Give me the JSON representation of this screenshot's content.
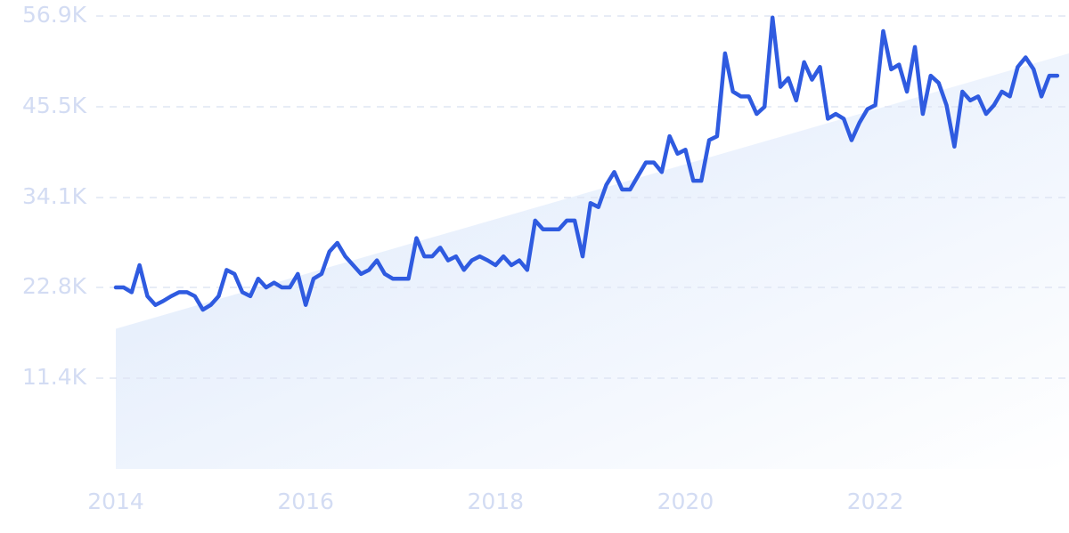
{
  "chart_data": {
    "type": "line",
    "x": [
      2014,
      2014.083,
      2014.167,
      2014.25,
      2014.333,
      2014.417,
      2014.5,
      2014.583,
      2014.667,
      2014.75,
      2014.833,
      2014.917,
      2015,
      2015.083,
      2015.167,
      2015.25,
      2015.333,
      2015.417,
      2015.5,
      2015.583,
      2015.667,
      2015.75,
      2015.833,
      2015.917,
      2016,
      2016.083,
      2016.167,
      2016.25,
      2016.333,
      2016.417,
      2016.5,
      2016.583,
      2016.667,
      2016.75,
      2016.833,
      2016.917,
      2017,
      2017.083,
      2017.167,
      2017.25,
      2017.333,
      2017.417,
      2017.5,
      2017.583,
      2017.667,
      2017.75,
      2017.833,
      2017.917,
      2018,
      2018.083,
      2018.167,
      2018.25,
      2018.333,
      2018.417,
      2018.5,
      2018.583,
      2018.667,
      2018.75,
      2018.833,
      2018.917,
      2019,
      2019.083,
      2019.167,
      2019.25,
      2019.333,
      2019.417,
      2019.5,
      2019.583,
      2019.667,
      2019.75,
      2019.833,
      2019.917,
      2020,
      2020.083,
      2020.167,
      2020.25,
      2020.333,
      2020.417,
      2020.5,
      2020.583,
      2020.667,
      2020.75,
      2020.833,
      2020.917,
      2021,
      2021.083,
      2021.167,
      2021.25,
      2021.333,
      2021.417,
      2021.5,
      2021.583,
      2021.667,
      2021.75,
      2021.833,
      2021.917,
      2022,
      2022.083,
      2022.167,
      2022.25,
      2022.333,
      2022.417,
      2022.5,
      2022.583,
      2022.667,
      2022.75,
      2022.833,
      2022.917,
      2023,
      2023.083,
      2023.167,
      2023.25,
      2023.333,
      2023.417,
      2023.5,
      2023.583,
      2023.667,
      2023.75,
      2023.833,
      2023.917
    ],
    "series": [
      {
        "color": "#2f5be0",
        "values": [
          22800,
          22800,
          22200,
          25600,
          21700,
          20600,
          21100,
          21700,
          22200,
          22200,
          21700,
          20000,
          20600,
          21700,
          25000,
          24500,
          22200,
          21700,
          23900,
          22800,
          23400,
          22800,
          22800,
          24500,
          20600,
          23900,
          24500,
          27300,
          28400,
          26700,
          25600,
          24500,
          25000,
          26200,
          24500,
          23900,
          23900,
          23900,
          29000,
          26700,
          26700,
          27800,
          26200,
          26700,
          25000,
          26200,
          26700,
          26200,
          25600,
          26700,
          25600,
          26200,
          25000,
          31200,
          30100,
          30100,
          30100,
          31200,
          31200,
          26700,
          33400,
          32900,
          35700,
          37300,
          35100,
          35100,
          36800,
          38500,
          38500,
          37300,
          41800,
          39600,
          40100,
          36200,
          36200,
          41300,
          41800,
          52200,
          47400,
          46800,
          46800,
          44600,
          45500,
          56700,
          48000,
          49100,
          46300,
          51100,
          48900,
          50500,
          44000,
          44600,
          44000,
          41300,
          43500,
          45200,
          45700,
          55000,
          50200,
          50800,
          47400,
          53000,
          44600,
          49400,
          48500,
          45700,
          40500,
          47400,
          46300,
          46800,
          44600,
          45700,
          47400,
          46800,
          50500,
          51700,
          50200,
          46800,
          49400,
          49400
        ]
      }
    ],
    "trend": {
      "x": [
        2014,
        2024.04
      ],
      "values": [
        17600,
        52200
      ],
      "color": "#dce8fb"
    },
    "xlim": [
      2014,
      2024.04
    ],
    "xticks": [
      2014,
      2016,
      2018,
      2020,
      2022
    ],
    "ylim": [
      0,
      56900
    ],
    "yticks": [
      {
        "value": 11400,
        "label": "11.4K"
      },
      {
        "value": 22800,
        "label": "22.8K"
      },
      {
        "value": 34100,
        "label": "34.1K"
      },
      {
        "value": 45500,
        "label": "45.5K"
      },
      {
        "value": 56900,
        "label": "56.9K"
      }
    ],
    "grid": true
  }
}
